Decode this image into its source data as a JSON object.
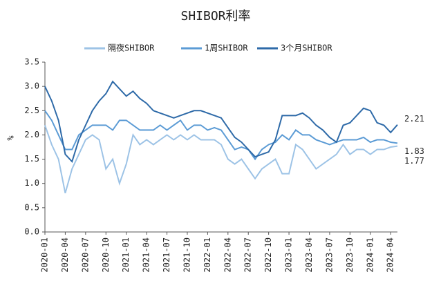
{
  "chart_data": {
    "type": "line",
    "title": "SHIBOR利率",
    "ylabel": "%",
    "categories": [
      "2020-01",
      null,
      null,
      "2020-04",
      null,
      null,
      "2020-07",
      null,
      null,
      "2020-10",
      null,
      null,
      "2021-01",
      null,
      null,
      "2021-04",
      null,
      null,
      "2021-07",
      null,
      null,
      "2021-10",
      null,
      null,
      "2022-01",
      null,
      null,
      "2022-04",
      null,
      null,
      "2022-07",
      null,
      null,
      "2022-10",
      null,
      null,
      "2023-01",
      null,
      null,
      "2023-04",
      null,
      null,
      "2023-07",
      null,
      null,
      "2023-10",
      null,
      null,
      "2024-01",
      null,
      null,
      "2024-04",
      null
    ],
    "series": [
      {
        "name": "隔夜SHIBOR",
        "color": "#9dc3e6",
        "values": [
          2.2,
          1.8,
          1.5,
          0.8,
          1.3,
          1.6,
          1.9,
          2.0,
          1.9,
          1.3,
          1.5,
          1.0,
          1.4,
          2.0,
          1.8,
          1.9,
          1.8,
          1.9,
          2.0,
          1.9,
          2.0,
          1.9,
          2.0,
          1.9,
          1.9,
          1.9,
          1.8,
          1.5,
          1.4,
          1.5,
          1.3,
          1.1,
          1.3,
          1.4,
          1.5,
          1.2,
          1.2,
          1.8,
          1.7,
          1.5,
          1.3,
          1.4,
          1.5,
          1.6,
          1.8,
          1.6,
          1.7,
          1.7,
          1.6,
          1.7,
          1.7,
          1.75,
          1.77
        ],
        "value_labels": [
          null,
          null,
          null,
          null,
          null,
          null,
          null,
          null,
          null,
          null,
          null,
          null,
          null,
          null,
          null,
          null,
          null,
          null,
          null,
          null,
          null,
          null,
          null,
          null,
          null,
          null,
          null,
          null,
          null,
          null,
          null,
          null,
          null,
          null,
          null,
          null,
          null,
          null,
          null,
          null,
          null,
          null,
          null,
          null,
          null,
          null,
          null,
          null,
          null,
          null,
          null,
          null,
          "1.77"
        ]
      },
      {
        "name": "1周SHIBOR",
        "color": "#5b9bd5",
        "values": [
          2.5,
          2.3,
          2.0,
          1.7,
          1.7,
          2.0,
          2.1,
          2.2,
          2.2,
          2.2,
          2.1,
          2.3,
          2.3,
          2.2,
          2.1,
          2.1,
          2.1,
          2.2,
          2.1,
          2.2,
          2.3,
          2.1,
          2.2,
          2.2,
          2.1,
          2.15,
          2.1,
          1.9,
          1.7,
          1.75,
          1.7,
          1.5,
          1.7,
          1.8,
          1.85,
          2.0,
          1.9,
          2.1,
          2.0,
          2.0,
          1.9,
          1.85,
          1.8,
          1.85,
          1.9,
          1.9,
          1.9,
          1.95,
          1.85,
          1.9,
          1.9,
          1.85,
          1.83
        ],
        "value_labels": [
          null,
          null,
          null,
          null,
          null,
          null,
          null,
          null,
          null,
          null,
          null,
          null,
          null,
          null,
          null,
          null,
          null,
          null,
          null,
          null,
          null,
          null,
          null,
          null,
          null,
          null,
          null,
          null,
          null,
          null,
          null,
          null,
          null,
          null,
          null,
          null,
          null,
          null,
          null,
          null,
          null,
          null,
          null,
          null,
          null,
          null,
          null,
          null,
          null,
          null,
          null,
          null,
          "1.83"
        ]
      },
      {
        "name": "3个月SHIBOR",
        "color": "#2e6aa8",
        "values": [
          3.0,
          2.7,
          2.3,
          1.6,
          1.45,
          1.9,
          2.2,
          2.5,
          2.7,
          2.85,
          3.1,
          2.95,
          2.8,
          2.9,
          2.75,
          2.65,
          2.5,
          2.45,
          2.4,
          2.35,
          2.4,
          2.45,
          2.5,
          2.5,
          2.45,
          2.4,
          2.35,
          2.15,
          1.95,
          1.85,
          1.7,
          1.55,
          1.6,
          1.65,
          1.9,
          2.4,
          2.4,
          2.4,
          2.45,
          2.35,
          2.2,
          2.1,
          1.95,
          1.85,
          2.2,
          2.25,
          2.4,
          2.55,
          2.5,
          2.25,
          2.2,
          2.05,
          2.21
        ],
        "value_labels": [
          null,
          null,
          null,
          null,
          null,
          null,
          null,
          null,
          null,
          null,
          null,
          null,
          null,
          null,
          null,
          null,
          null,
          null,
          null,
          null,
          null,
          null,
          null,
          null,
          null,
          null,
          null,
          null,
          null,
          null,
          null,
          null,
          null,
          null,
          null,
          null,
          null,
          null,
          null,
          null,
          null,
          null,
          null,
          null,
          null,
          null,
          null,
          null,
          null,
          null,
          null,
          null,
          "2.21"
        ]
      }
    ],
    "ylim": [
      0,
      3.5
    ],
    "yticks": [
      {
        "value": 0,
        "label": "0.0"
      },
      0.5,
      {
        "value": 1,
        "label": "1.0"
      },
      1.5,
      {
        "value": 2,
        "label": "2.0"
      },
      2.5,
      {
        "value": 3,
        "label": "3.0"
      },
      3.5
    ],
    "legend": "top"
  }
}
